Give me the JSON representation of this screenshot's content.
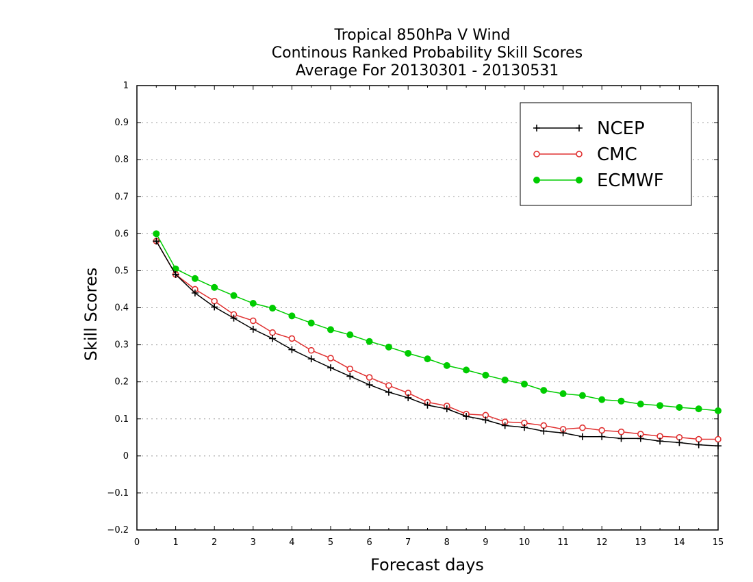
{
  "chart_data": {
    "type": "line",
    "title": [
      "Tropical 850hPa V Wind",
      "Continous Ranked Probability Skill Scores",
      "Average For 20130301 - 20130531"
    ],
    "xlabel": "Forecast days",
    "ylabel": "Skill Scores",
    "xlim": [
      0,
      15
    ],
    "ylim": [
      -0.2,
      1
    ],
    "xticks": [
      "0",
      "1",
      "2",
      "3",
      "4",
      "5",
      "6",
      "7",
      "8",
      "9",
      "10",
      "11",
      "12",
      "13",
      "14",
      "15"
    ],
    "yticks": [
      "−0.2",
      "−0.1",
      "0",
      "0.1",
      "0.2",
      "0.3",
      "0.4",
      "0.5",
      "0.6",
      "0.7",
      "0.8",
      "0.9",
      "1"
    ],
    "grid": "horizontal dotted",
    "legend_position": "top-right",
    "x": [
      0.5,
      1,
      1.5,
      2,
      2.5,
      3,
      3.5,
      4,
      4.5,
      5,
      5.5,
      6,
      6.5,
      7,
      7.5,
      8,
      8.5,
      9,
      9.5,
      10,
      10.5,
      11,
      11.5,
      12,
      12.5,
      13,
      13.5,
      14,
      14.5,
      15
    ],
    "series": [
      {
        "name": "NCEP",
        "color": "#000000",
        "marker": "plus",
        "values": [
          0.58,
          0.49,
          0.44,
          0.402,
          0.372,
          0.342,
          0.317,
          0.287,
          0.262,
          0.238,
          0.215,
          0.192,
          0.172,
          0.157,
          0.137,
          0.127,
          0.107,
          0.097,
          0.082,
          0.077,
          0.067,
          0.062,
          0.052,
          0.052,
          0.047,
          0.047,
          0.04,
          0.036,
          0.03,
          0.027
        ]
      },
      {
        "name": "CMC",
        "color": "#e03030",
        "marker": "open-circle",
        "values": [
          0.58,
          0.49,
          0.45,
          0.418,
          0.382,
          0.365,
          0.333,
          0.317,
          0.285,
          0.264,
          0.235,
          0.212,
          0.19,
          0.17,
          0.145,
          0.135,
          0.113,
          0.11,
          0.092,
          0.089,
          0.082,
          0.072,
          0.076,
          0.069,
          0.065,
          0.059,
          0.053,
          0.05,
          0.045,
          0.045
        ]
      },
      {
        "name": "ECMWF",
        "color": "#00cc00",
        "marker": "filled-circle",
        "values": [
          0.6,
          0.505,
          0.479,
          0.455,
          0.433,
          0.412,
          0.399,
          0.378,
          0.359,
          0.341,
          0.327,
          0.309,
          0.294,
          0.277,
          0.262,
          0.244,
          0.232,
          0.218,
          0.205,
          0.194,
          0.177,
          0.168,
          0.163,
          0.152,
          0.148,
          0.14,
          0.136,
          0.131,
          0.127,
          0.122
        ]
      }
    ]
  }
}
